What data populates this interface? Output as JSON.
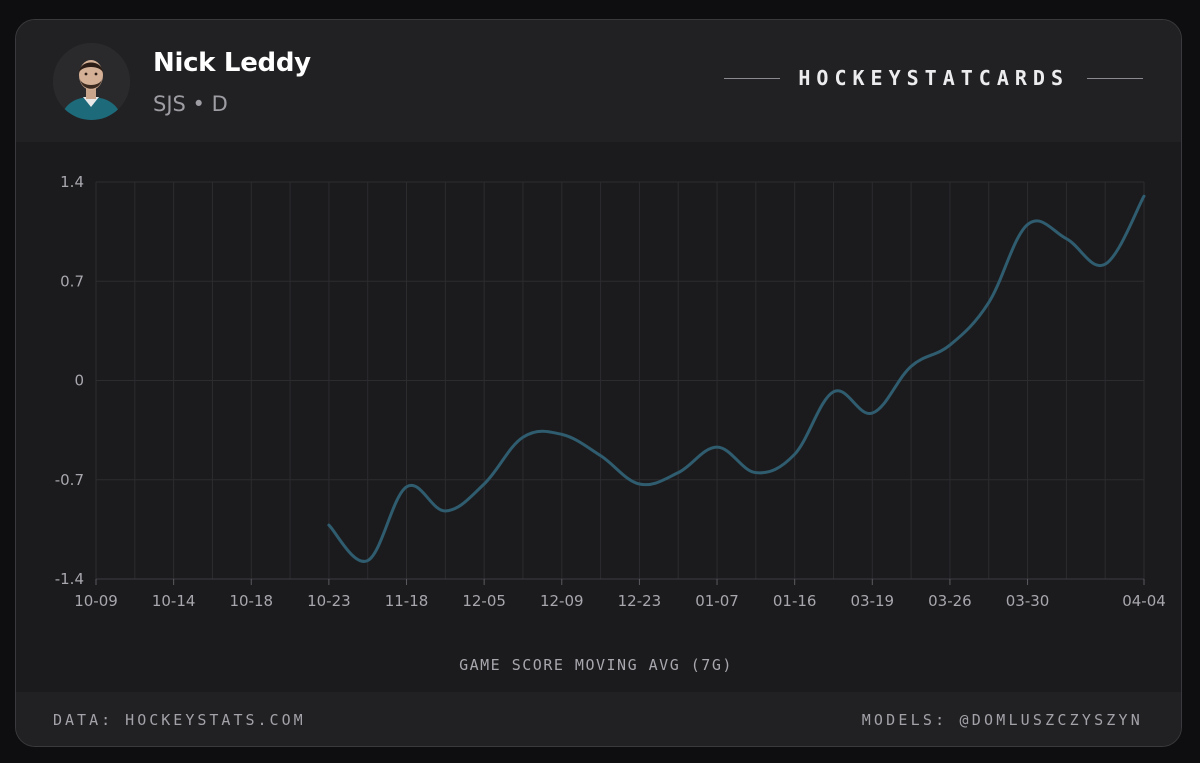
{
  "player": {
    "name": "Nick Leddy",
    "meta": "SJS • D"
  },
  "brand": {
    "text": "HOCKEYSTATCARDS"
  },
  "footer": {
    "data_source": "DATA: HOCKEYSTATS.COM",
    "models": "MODELS: @DOMLUSZCZYSZYN"
  },
  "colors": {
    "line": "#2f5c6e",
    "grid": "#2c2c30",
    "background": "#1b1b1d",
    "jersey": "#1d6a7a"
  },
  "icons": {
    "avatar": "player-headshot-icon"
  },
  "chart_data": {
    "type": "line",
    "title": "",
    "xlabel": "GAME SCORE MOVING AVG (7G)",
    "ylabel": "",
    "ylim": [
      -1.4,
      1.4
    ],
    "yticks": [
      1.4,
      0.7,
      0,
      -0.7,
      -1.4
    ],
    "ytick_labels": [
      "1.4",
      "0.7",
      "0",
      "-0.7",
      "-1.4"
    ],
    "x_tick_labels": [
      "10-09",
      "10-14",
      "10-18",
      "10-23",
      "11-18",
      "12-05",
      "12-09",
      "12-23",
      "01-07",
      "01-16",
      "03-19",
      "03-26",
      "03-30",
      "04-04"
    ],
    "x_tick_positions": [
      0,
      2,
      4,
      6,
      8,
      10,
      12,
      14,
      16,
      18,
      20,
      22,
      24,
      27
    ],
    "grid": true,
    "series": [
      {
        "x": [
          6,
          7,
          8,
          9,
          10,
          11,
          12,
          13,
          14,
          15,
          16,
          17,
          18,
          19,
          20,
          21,
          22,
          23,
          24,
          25,
          26,
          27
        ],
        "values": [
          -1.02,
          -1.27,
          -0.75,
          -0.92,
          -0.73,
          -0.4,
          -0.38,
          -0.53,
          -0.73,
          -0.65,
          -0.47,
          -0.65,
          -0.52,
          -0.08,
          -0.23,
          0.1,
          0.25,
          0.55,
          1.1,
          1.0,
          0.82,
          1.3
        ]
      }
    ]
  }
}
